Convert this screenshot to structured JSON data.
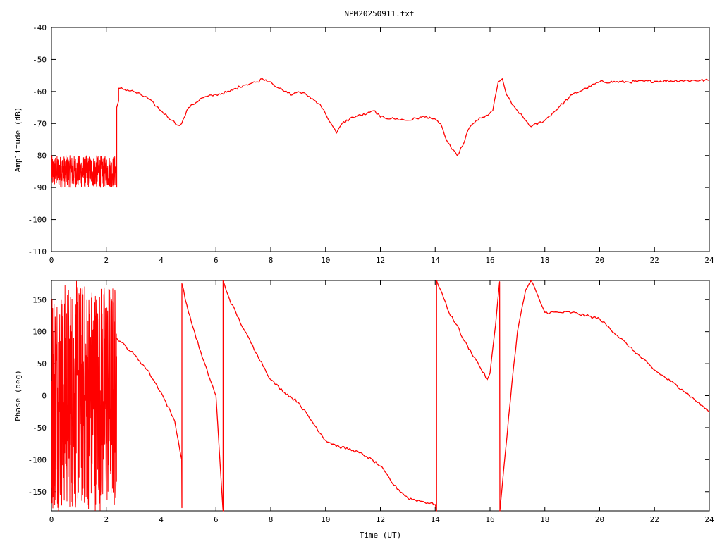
{
  "title": "NPM20250911.txt",
  "colors": {
    "trace": "#ff0000",
    "axes": "#000000"
  },
  "chart_data": [
    {
      "type": "line",
      "title": "NPM20250911.txt",
      "xlabel": "",
      "ylabel": "Amplitude (dB)",
      "xlim": [
        0,
        24
      ],
      "ylim": [
        -110,
        -40
      ],
      "xticks": [
        0,
        2,
        4,
        6,
        8,
        10,
        12,
        14,
        16,
        18,
        20,
        22,
        24
      ],
      "yticks": [
        -110,
        -100,
        -90,
        -80,
        -70,
        -60,
        -50,
        -40
      ],
      "x_tick_labels": [
        "0",
        "2",
        "4",
        "6",
        "8",
        "10",
        "12",
        "14",
        "16",
        "18",
        "20",
        "22",
        "24"
      ],
      "y_tick_labels": [
        "-110",
        "-100",
        "-90",
        "-80",
        "-70",
        "-60",
        "-50",
        "-40"
      ],
      "grid": false,
      "noise_band": {
        "x": [
          0,
          2.38
        ],
        "y_low": -90,
        "y_high": -80
      },
      "series": [
        {
          "x": [
            2.38,
            2.38,
            2.45,
            2.45,
            2.5,
            3.0,
            3.5,
            4.0,
            4.4,
            4.6,
            4.75,
            5.0,
            5.5,
            6.0,
            6.5,
            7.0,
            7.5,
            7.7,
            8.0,
            8.3,
            8.5,
            8.8,
            9.0,
            9.3,
            9.8,
            10.0,
            10.2,
            10.4,
            10.6,
            11.0,
            11.5,
            11.8,
            12.0,
            12.5,
            13.0,
            13.5,
            13.8,
            14.2,
            14.4,
            14.6,
            14.8,
            15.0,
            15.2,
            15.5,
            15.8,
            16.1,
            16.3,
            16.45,
            16.6,
            16.8,
            17.0,
            17.3,
            17.5,
            18.0,
            18.5,
            19.0,
            19.5,
            20.0,
            21.0,
            22.0,
            23.0,
            24.0
          ],
          "y": [
            -90,
            -65,
            -63,
            -59,
            -59,
            -60,
            -62,
            -66,
            -69,
            -70.5,
            -70,
            -65,
            -62,
            -61,
            -60,
            -58,
            -57,
            -56,
            -57,
            -59,
            -60,
            -61,
            -60,
            -61,
            -64,
            -67,
            -70,
            -73,
            -70,
            -68,
            -67,
            -66,
            -68,
            -68.5,
            -69,
            -68,
            -68,
            -70,
            -75,
            -78,
            -80,
            -77,
            -72,
            -69,
            -68,
            -66,
            -57,
            -56,
            -61,
            -64,
            -66,
            -69,
            -71,
            -69,
            -65,
            -61,
            -59,
            -57,
            -57,
            -56.8,
            -56.6,
            -56.5
          ]
        }
      ]
    },
    {
      "type": "line",
      "title": "",
      "xlabel": "Time (UT)",
      "ylabel": "Phase (deg)",
      "xlim": [
        0,
        24
      ],
      "ylim": [
        -180,
        180
      ],
      "xticks": [
        0,
        2,
        4,
        6,
        8,
        10,
        12,
        14,
        16,
        18,
        20,
        22,
        24
      ],
      "yticks": [
        -150,
        -100,
        -50,
        0,
        50,
        100,
        150
      ],
      "x_tick_labels": [
        "0",
        "2",
        "4",
        "6",
        "8",
        "10",
        "12",
        "14",
        "16",
        "18",
        "20",
        "22",
        "24"
      ],
      "y_tick_labels": [
        "-150",
        "-100",
        "-50",
        "0",
        "50",
        "100",
        "150"
      ],
      "grid": false,
      "noise_band": {
        "x": [
          0,
          2.38
        ],
        "y_low": -180,
        "y_high": 180
      },
      "series": [
        {
          "x": [
            2.38,
            2.5,
            3.0,
            3.5,
            4.0,
            4.5,
            4.75,
            4.76,
            4.76,
            5.0,
            5.5,
            6.0,
            6.25,
            6.26,
            6.26,
            6.5,
            7.0,
            7.5,
            8.0,
            8.5,
            9.0,
            9.5,
            10.0,
            10.5,
            11.0,
            11.5,
            12.0,
            12.5,
            13.0,
            13.5,
            14.0,
            14.05,
            14.05,
            14.2,
            14.5,
            14.8,
            15.0,
            15.5,
            15.9,
            16.0,
            16.2,
            16.35,
            16.36,
            16.36,
            16.5,
            16.8,
            17.0,
            17.3,
            17.5,
            17.8,
            18.0,
            18.5,
            19.0,
            19.5,
            20.0,
            21.0,
            22.0,
            23.0,
            24.0
          ],
          "y": [
            90,
            85,
            65,
            40,
            5,
            -40,
            -100,
            -175,
            175,
            130,
            60,
            0,
            -175,
            -180,
            180,
            150,
            105,
            65,
            25,
            5,
            -10,
            -40,
            -70,
            -80,
            -85,
            -95,
            -110,
            -140,
            -160,
            -165,
            -170,
            -180,
            180,
            165,
            130,
            110,
            90,
            55,
            25,
            35,
            110,
            178,
            -178,
            -180,
            -115,
            20,
            100,
            165,
            180,
            150,
            130,
            130,
            130,
            125,
            120,
            80,
            40,
            10,
            -25
          ]
        }
      ]
    }
  ]
}
